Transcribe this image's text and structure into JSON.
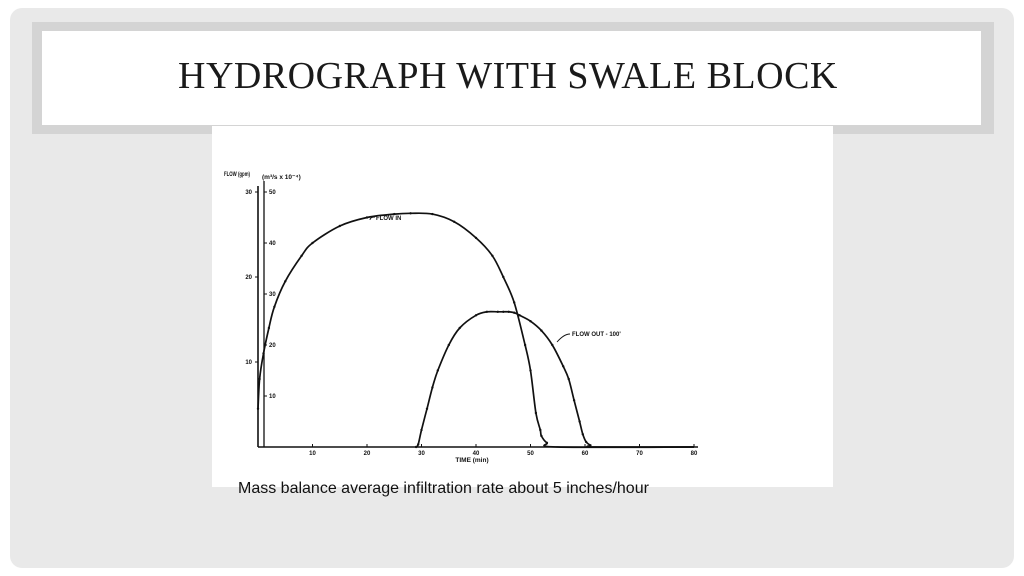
{
  "slide": {
    "title": "HYDROGRAPH WITH SWALE BLOCK",
    "caption": "Mass balance average infiltration rate about 5 inches/hour"
  },
  "colors": {
    "background": "#e9e9e9",
    "title_frame": "#d4d4d4",
    "ink": "#111111"
  },
  "chart_data": {
    "type": "line",
    "title": "",
    "xlabel": "TIME (min)",
    "ylabel_left": "FLOW (gpm)",
    "ylabel_right": "(m³/s x 10⁻⁴)",
    "xlim": [
      0,
      80
    ],
    "ylim_left": [
      0,
      30
    ],
    "ylim_right": [
      0,
      50
    ],
    "x_ticks": [
      10,
      20,
      30,
      40,
      50,
      60,
      70,
      80
    ],
    "y_ticks_left": [
      10,
      20,
      30
    ],
    "y_ticks_right": [
      10,
      20,
      30,
      40,
      50
    ],
    "grid": false,
    "series": [
      {
        "name": "FLOW IN",
        "x": [
          0,
          0.3,
          1,
          2,
          3,
          5,
          8,
          10,
          15,
          20,
          25,
          28,
          32,
          36,
          40,
          43,
          45,
          47,
          49,
          50,
          51,
          51.8,
          52,
          53,
          55,
          80
        ],
        "y": [
          4.5,
          8,
          11,
          14,
          16.5,
          19.5,
          22.5,
          24,
          26,
          27,
          27.4,
          27.5,
          27.4,
          26.5,
          24.6,
          22.5,
          20,
          17,
          12,
          9,
          4,
          2,
          1.3,
          0.5,
          0,
          0
        ]
      },
      {
        "name": "FLOW OUT - 100'",
        "x": [
          29,
          29.4,
          30,
          31,
          32,
          33,
          35,
          37,
          40,
          42,
          44,
          45,
          46,
          47,
          48,
          50,
          52,
          54,
          56,
          57,
          58,
          59,
          59.6,
          60.2,
          61,
          62,
          80
        ],
        "y": [
          0,
          0.3,
          2,
          4.5,
          7,
          9,
          12,
          14,
          15.5,
          15.9,
          15.9,
          15.9,
          15.9,
          15.8,
          15.5,
          14.8,
          13.7,
          12,
          9.5,
          8,
          5.5,
          3,
          1.5,
          0.6,
          0.2,
          0,
          0
        ]
      }
    ],
    "annotations": [
      "FLOW IN",
      "FLOW OUT - 100'"
    ]
  }
}
